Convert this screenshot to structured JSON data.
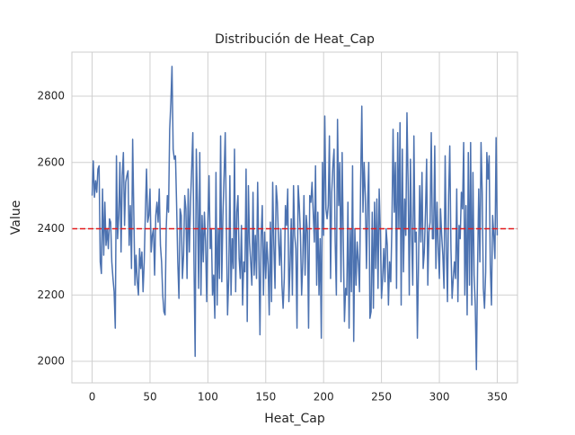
{
  "chart_data": {
    "type": "line",
    "title": "Distribución de Heat_Cap",
    "x_label": "Heat_Cap",
    "y_label": "Value",
    "xlim": [
      -17.5,
      367.5
    ],
    "ylim": [
      1935,
      2933
    ],
    "xticks": [
      0,
      50,
      100,
      150,
      200,
      250,
      300,
      350
    ],
    "yticks": [
      2000,
      2200,
      2400,
      2600,
      2800
    ],
    "grid": true,
    "reference_line": {
      "y": 2400,
      "color": "#e41a1c",
      "dashed": true
    },
    "x": [
      0,
      1,
      2,
      3,
      4,
      5,
      6,
      7,
      8,
      9,
      10,
      11,
      12,
      13,
      14,
      15,
      16,
      17,
      18,
      19,
      20,
      21,
      22,
      23,
      24,
      25,
      26,
      27,
      28,
      29,
      30,
      31,
      32,
      33,
      34,
      35,
      36,
      37,
      38,
      39,
      40,
      41,
      42,
      43,
      44,
      45,
      46,
      47,
      48,
      49,
      50,
      51,
      52,
      53,
      54,
      55,
      56,
      57,
      58,
      59,
      60,
      61,
      62,
      63,
      64,
      65,
      66,
      67,
      68,
      69,
      70,
      71,
      72,
      73,
      74,
      75,
      76,
      77,
      78,
      79,
      80,
      81,
      82,
      83,
      84,
      85,
      86,
      87,
      88,
      89,
      90,
      91,
      92,
      93,
      94,
      95,
      96,
      97,
      98,
      99,
      100,
      101,
      102,
      103,
      104,
      105,
      106,
      107,
      108,
      109,
      110,
      111,
      112,
      113,
      114,
      115,
      116,
      117,
      118,
      119,
      120,
      121,
      122,
      123,
      124,
      125,
      126,
      127,
      128,
      129,
      130,
      131,
      132,
      133,
      134,
      135,
      136,
      137,
      138,
      139,
      140,
      141,
      142,
      143,
      144,
      145,
      146,
      147,
      148,
      149,
      150,
      151,
      152,
      153,
      154,
      155,
      156,
      157,
      158,
      159,
      160,
      161,
      162,
      163,
      164,
      165,
      166,
      167,
      168,
      169,
      170,
      171,
      172,
      173,
      174,
      175,
      176,
      177,
      178,
      179,
      180,
      181,
      182,
      183,
      184,
      185,
      186,
      187,
      188,
      189,
      190,
      191,
      192,
      193,
      194,
      195,
      196,
      197,
      198,
      199,
      200,
      201,
      202,
      203,
      204,
      205,
      206,
      207,
      208,
      209,
      210,
      211,
      212,
      213,
      214,
      215,
      216,
      217,
      218,
      219,
      220,
      221,
      222,
      223,
      224,
      225,
      226,
      227,
      228,
      229,
      230,
      231,
      232,
      233,
      234,
      235,
      236,
      237,
      238,
      239,
      240,
      241,
      242,
      243,
      244,
      245,
      246,
      247,
      248,
      249,
      250,
      251,
      252,
      253,
      254,
      255,
      256,
      257,
      258,
      259,
      260,
      261,
      262,
      263,
      264,
      265,
      266,
      267,
      268,
      269,
      270,
      271,
      272,
      273,
      274,
      275,
      276,
      277,
      278,
      279,
      280,
      281,
      282,
      283,
      284,
      285,
      286,
      287,
      288,
      289,
      290,
      291,
      292,
      293,
      294,
      295,
      296,
      297,
      298,
      299,
      300,
      301,
      302,
      303,
      304,
      305,
      306,
      307,
      308,
      309,
      310,
      311,
      312,
      313,
      314,
      315,
      316,
      317,
      318,
      319,
      320,
      321,
      322,
      323,
      324,
      325,
      326,
      327,
      328,
      329,
      330,
      331,
      332,
      333,
      334,
      335,
      336,
      337,
      338,
      339,
      340,
      341,
      342,
      343,
      344,
      345,
      346,
      347,
      348,
      349,
      350
    ],
    "series": [
      {
        "color": "#4c72b0",
        "values": [
          2500,
          2605,
          2495,
          2545,
          2510,
          2580,
          2590,
          2300,
          2265,
          2520,
          2320,
          2480,
          2350,
          2400,
          2340,
          2430,
          2420,
          2300,
          2250,
          2210,
          2100,
          2620,
          2370,
          2440,
          2600,
          2330,
          2560,
          2630,
          2410,
          2540,
          2560,
          2575,
          2350,
          2470,
          2280,
          2670,
          2450,
          2230,
          2320,
          2240,
          2200,
          2340,
          2280,
          2330,
          2210,
          2300,
          2450,
          2580,
          2420,
          2440,
          2520,
          2330,
          2380,
          2400,
          2260,
          2440,
          2480,
          2420,
          2520,
          2350,
          2300,
          2200,
          2150,
          2140,
          2400,
          2500,
          2450,
          2700,
          2780,
          2890,
          2640,
          2610,
          2620,
          2470,
          2300,
          2190,
          2460,
          2440,
          2250,
          2320,
          2500,
          2460,
          2250,
          2520,
          2330,
          2480,
          2580,
          2690,
          2300,
          2015,
          2640,
          2480,
          2220,
          2630,
          2200,
          2440,
          2300,
          2450,
          2360,
          2180,
          2420,
          2560,
          2340,
          2400,
          2200,
          2260,
          2130,
          2570,
          2170,
          2400,
          2250,
          2680,
          2240,
          2440,
          2560,
          2690,
          2400,
          2140,
          2250,
          2560,
          2200,
          2370,
          2280,
          2640,
          2210,
          2450,
          2500,
          2310,
          2250,
          2410,
          2170,
          2300,
          2270,
          2580,
          2120,
          2530,
          2360,
          2300,
          2230,
          2510,
          2260,
          2380,
          2250,
          2540,
          2330,
          2080,
          2380,
          2470,
          2200,
          2390,
          2250,
          2360,
          2290,
          2140,
          2420,
          2180,
          2540,
          2350,
          2220,
          2530,
          2480,
          2370,
          2290,
          2400,
          2230,
          2160,
          2250,
          2470,
          2410,
          2520,
          2180,
          2290,
          2430,
          2200,
          2530,
          2380,
          2340,
          2100,
          2530,
          2470,
          2380,
          2200,
          2300,
          2500,
          2260,
          2440,
          2390,
          2100,
          2500,
          2480,
          2540,
          2450,
          2360,
          2590,
          2230,
          2450,
          2200,
          2370,
          2070,
          2600,
          2380,
          2740,
          2460,
          2430,
          2470,
          2680,
          2250,
          2510,
          2590,
          2640,
          2360,
          2200,
          2730,
          2470,
          2600,
          2240,
          2630,
          2360,
          2120,
          2220,
          2200,
          2480,
          2100,
          2400,
          2210,
          2590,
          2060,
          2400,
          2230,
          2360,
          2300,
          2210,
          2540,
          2770,
          2450,
          2600,
          2500,
          2280,
          2470,
          2600,
          2130,
          2150,
          2450,
          2160,
          2480,
          2280,
          2490,
          2220,
          2520,
          2390,
          2190,
          2250,
          2340,
          2240,
          2400,
          2350,
          2170,
          2300,
          2240,
          2410,
          2700,
          2450,
          2600,
          2220,
          2690,
          2400,
          2720,
          2170,
          2640,
          2270,
          2490,
          2380,
          2750,
          2540,
          2200,
          2610,
          2380,
          2230,
          2680,
          2360,
          2390,
          2070,
          2300,
          2530,
          2360,
          2570,
          2280,
          2330,
          2450,
          2610,
          2230,
          2390,
          2420,
          2690,
          2370,
          2370,
          2650,
          2280,
          2480,
          2340,
          2250,
          2460,
          2380,
          2320,
          2220,
          2620,
          2350,
          2180,
          2500,
          2650,
          2340,
          2190,
          2250,
          2300,
          2250,
          2520,
          2180,
          2410,
          2370,
          2510,
          2460,
          2660,
          2200,
          2470,
          2140,
          2630,
          2230,
          2660,
          2170,
          2570,
          2260,
          2170,
          1975,
          2280,
          2520,
          2300,
          2660,
          2510,
          2220,
          2160,
          2270,
          2630,
          2550,
          2620,
          2290,
          2170,
          2440,
          2380,
          2310,
          2675,
          2380
        ]
      }
    ]
  }
}
